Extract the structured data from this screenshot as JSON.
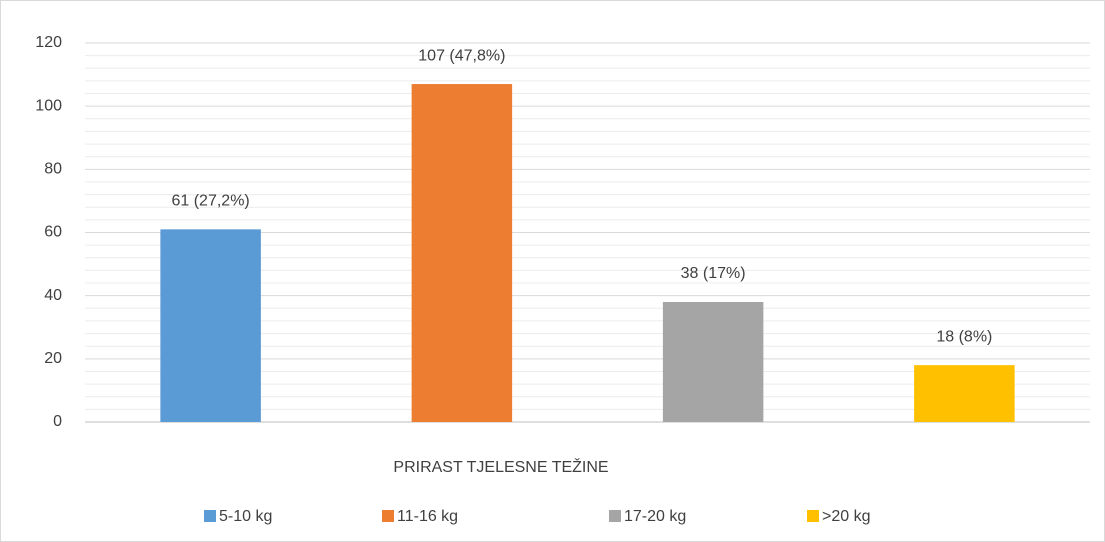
{
  "chart_data": {
    "type": "bar",
    "x_label": "PRIRAST TJELESNE TEŽINE",
    "categories": [
      "5-10 kg",
      "11-16 kg",
      "17-20 kg",
      ">20 kg"
    ],
    "values": [
      61,
      107,
      38,
      18
    ],
    "value_labels": [
      "61 (27,2%)",
      "107 (47,8%)",
      "38 (17%)",
      "18 (8%)"
    ],
    "colors": [
      "#5b9bd5",
      "#ed7d31",
      "#a5a5a5",
      "#ffc000"
    ],
    "ylim": [
      0,
      120
    ],
    "yticks": [
      0,
      20,
      40,
      60,
      80,
      100,
      120
    ],
    "grid": true,
    "minor_grid_divisions": 5,
    "legend": "bottom"
  }
}
